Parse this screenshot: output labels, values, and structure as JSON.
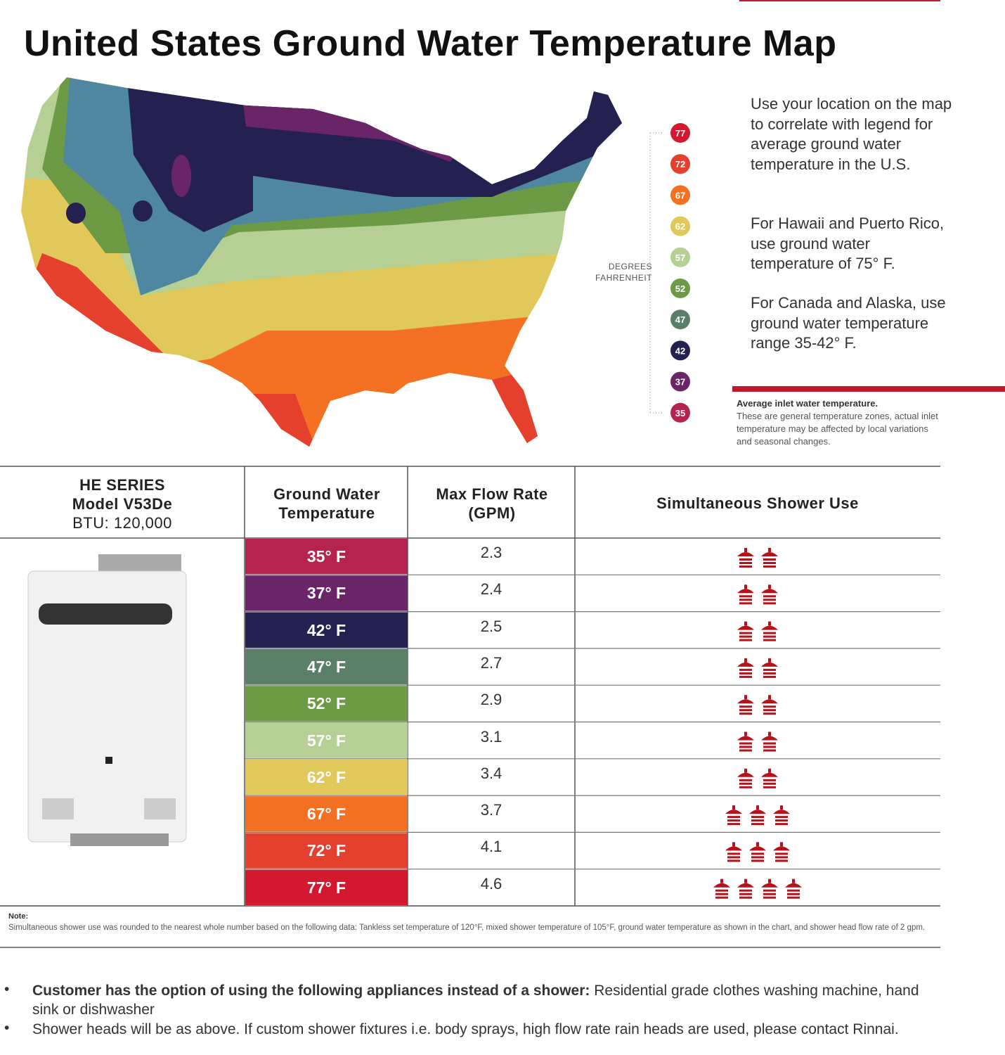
{
  "title": "United States Ground Water Temperature Map",
  "legend": {
    "caption": "DEGREES FAHRENHEIT",
    "items": [
      {
        "label": "77",
        "color": "#d3192f"
      },
      {
        "label": "72",
        "color": "#e53f2e"
      },
      {
        "label": "67",
        "color": "#f47022"
      },
      {
        "label": "62",
        "color": "#e0c85a"
      },
      {
        "label": "57",
        "color": "#b5cf95"
      },
      {
        "label": "52",
        "color": "#6d9a44"
      },
      {
        "label": "47",
        "color": "#5b8068"
      },
      {
        "label": "42",
        "color": "#24204f"
      },
      {
        "label": "37",
        "color": "#6a2569"
      },
      {
        "label": "35",
        "color": "#b5234f"
      }
    ]
  },
  "side_text": {
    "paragraphs": [
      "Use your location on the map to correlate with legend for average ground water temperature in the U.S.",
      "For Hawaii and Puerto Rico, use ground water temperature of 75° F.",
      "For Canada and Alaska, use ground water temperature range 35-42° F."
    ],
    "note_title": "Average inlet water temperature.",
    "note_body": "These are general temperature zones, actual inlet temperature may be affected by local variations and seasonal changes."
  },
  "table": {
    "header": {
      "model": [
        "HE SERIES",
        "Model V53De",
        "BTU: 120,000"
      ],
      "temp": "Ground Water Temperature",
      "flow": "Max Flow Rate (GPM)",
      "shower": "Simultaneous Shower Use"
    },
    "rows": [
      {
        "temp": "35° F",
        "color": "#b5234f",
        "flow": "2.3",
        "showers": 2
      },
      {
        "temp": "37° F",
        "color": "#6a2569",
        "flow": "2.4",
        "showers": 2
      },
      {
        "temp": "42° F",
        "color": "#24204f",
        "flow": "2.5",
        "showers": 2
      },
      {
        "temp": "47° F",
        "color": "#5b8068",
        "flow": "2.7",
        "showers": 2
      },
      {
        "temp": "52° F",
        "color": "#6d9a44",
        "flow": "2.9",
        "showers": 2
      },
      {
        "temp": "57° F",
        "color": "#b5cf95",
        "flow": "3.1",
        "showers": 2
      },
      {
        "temp": "62° F",
        "color": "#e0c85a",
        "flow": "3.4",
        "showers": 2
      },
      {
        "temp": "67° F",
        "color": "#f47022",
        "flow": "3.7",
        "showers": 3
      },
      {
        "temp": "72° F",
        "color": "#e53f2e",
        "flow": "4.1",
        "showers": 3
      },
      {
        "temp": "77° F",
        "color": "#d3192f",
        "flow": "4.6",
        "showers": 4
      }
    ]
  },
  "note": {
    "title": "Note:",
    "body": "Simultaneous shower use was rounded to the nearest whole number based on the following data: Tankless set temperature of 120°F, mixed shower temperature of 105°F, ground water temperature as shown in the chart, and shower head flow rate of 2 gpm."
  },
  "bullets": [
    {
      "bold": "Customer has the option of using the following appliances instead of a shower:",
      "text": " Residential grade clothes washing machine, hand sink or dishwasher"
    },
    {
      "text": "Shower heads will be as above. If custom shower fixtures  i.e. body sprays, high flow rate rain heads are used, please contact Rinnai."
    }
  ]
}
